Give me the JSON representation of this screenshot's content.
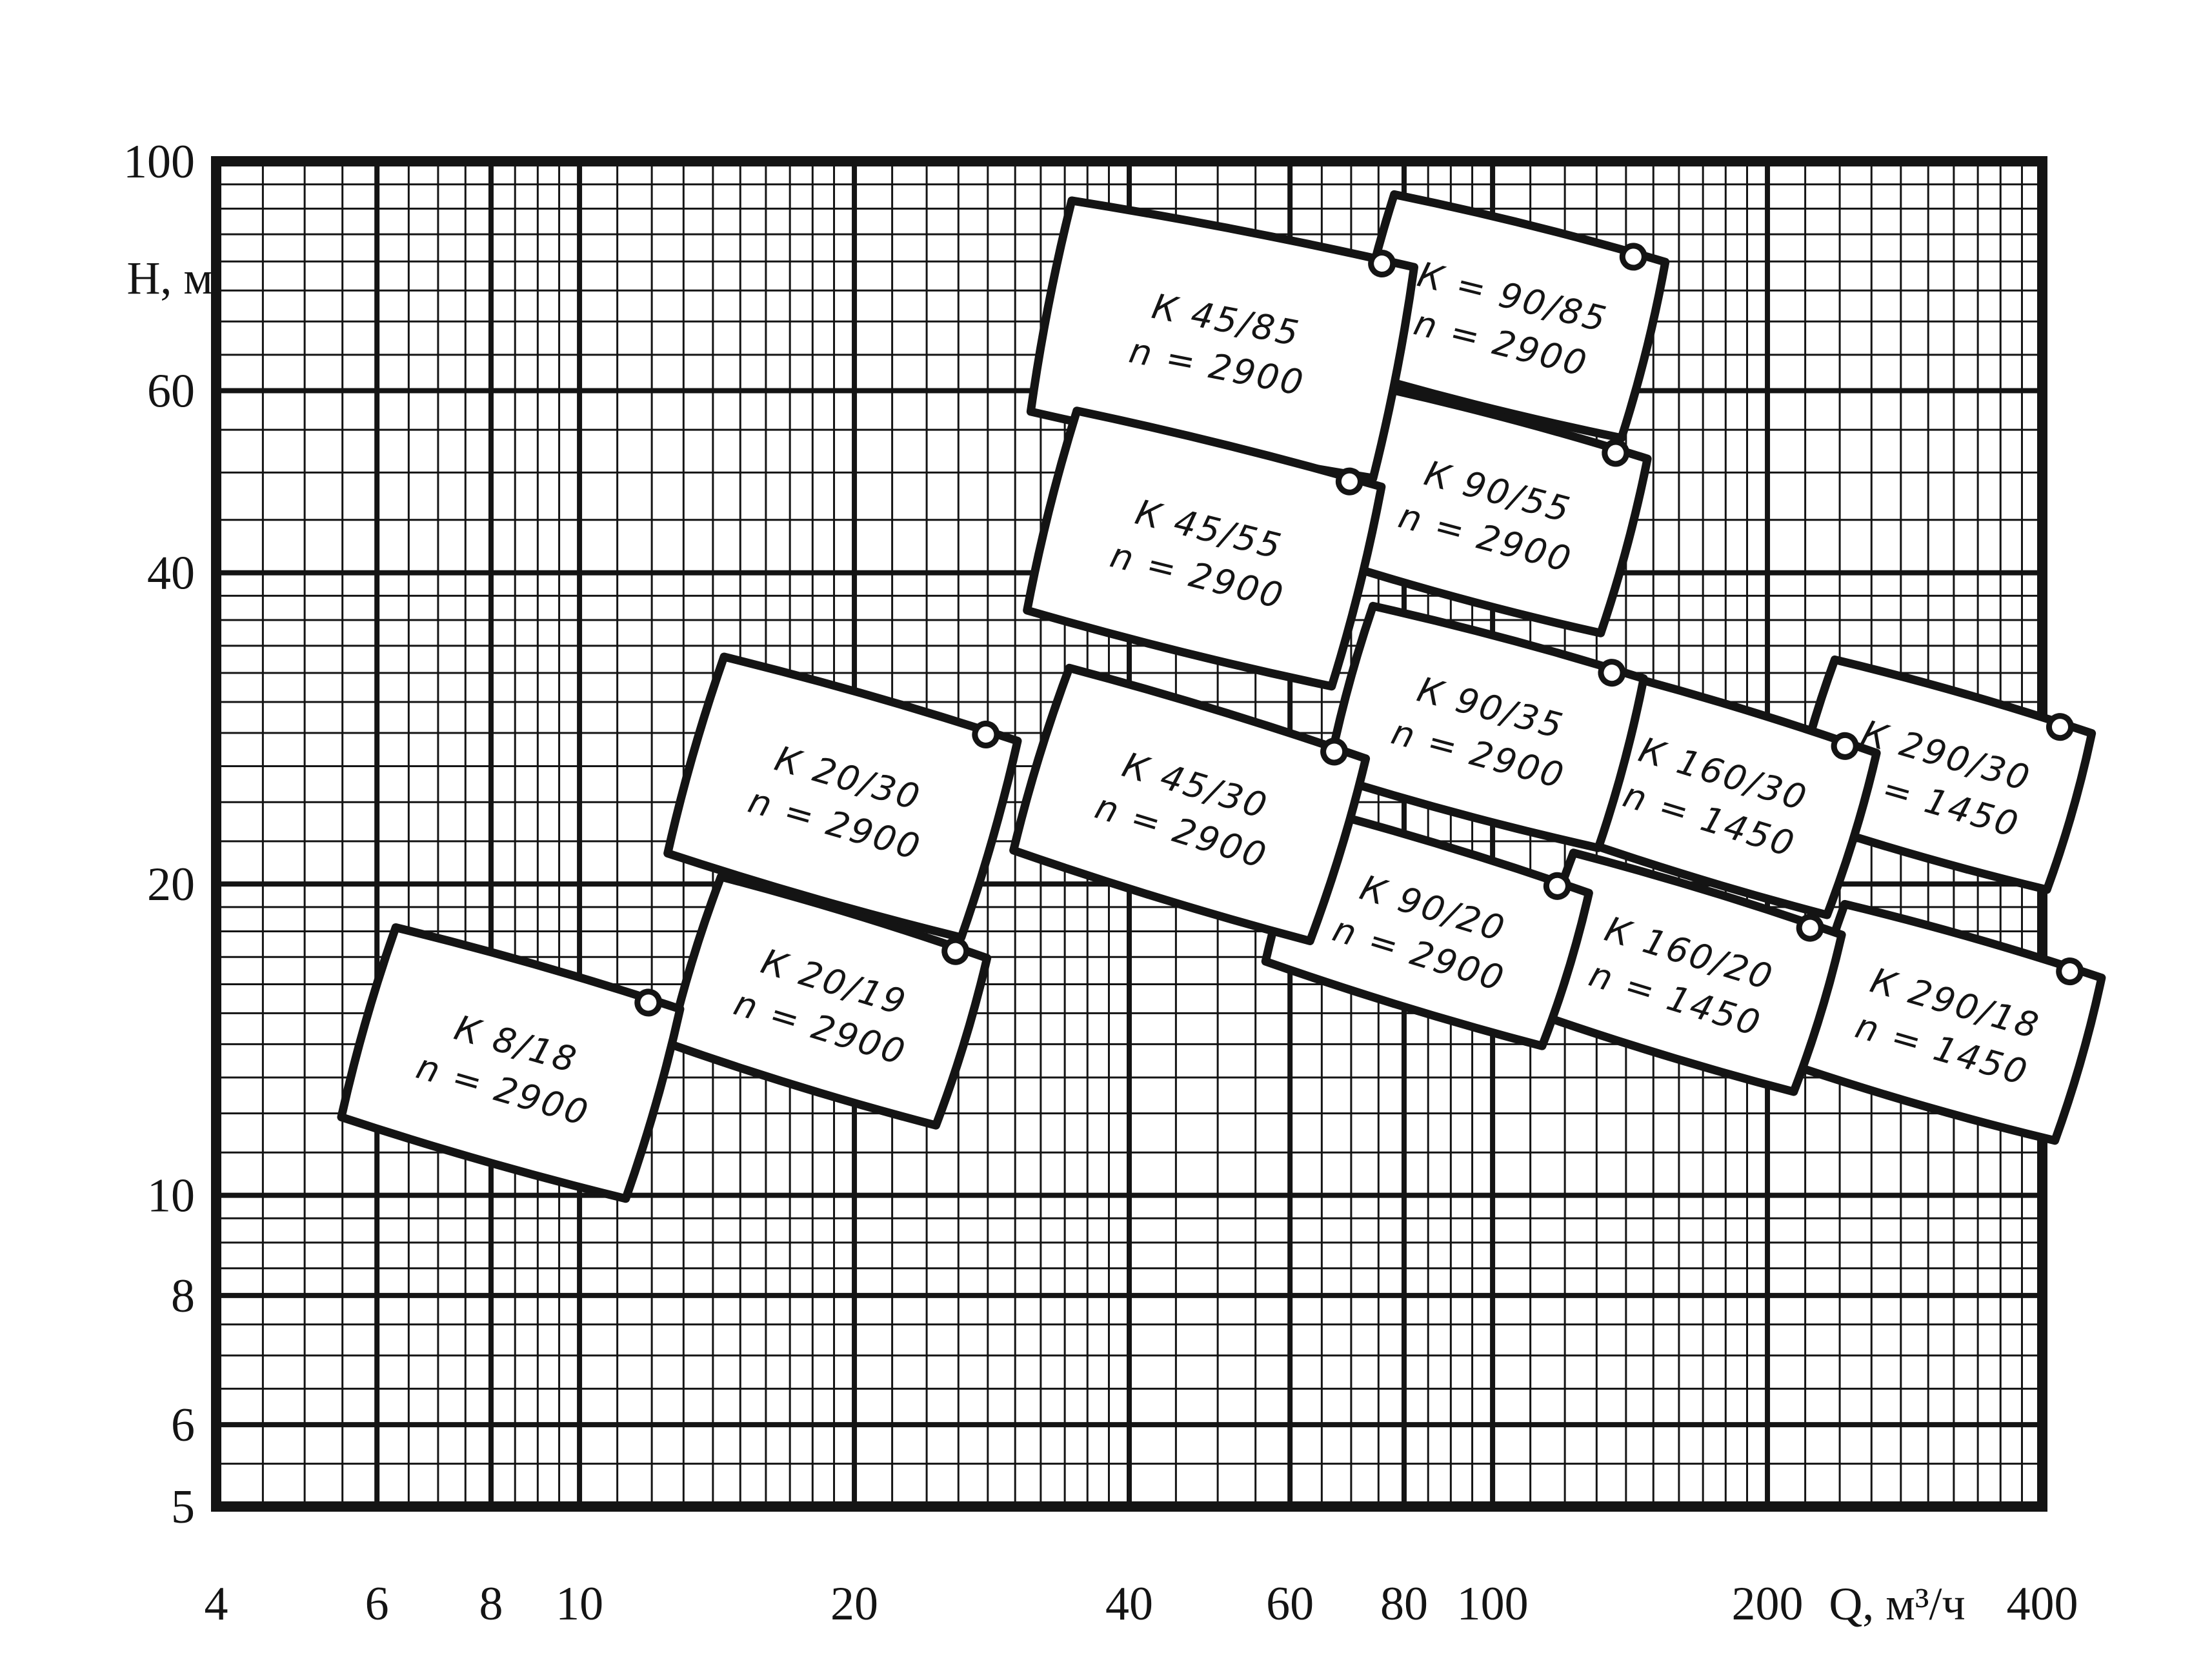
{
  "page": {
    "background": "#ffffff",
    "ink": "#141414"
  },
  "chart_data": {
    "type": "area",
    "title": "",
    "xlabel": "Q, м³/ч",
    "ylabel": "Н, м",
    "x_scale": "log",
    "y_scale": "log",
    "xlim": [
      4,
      400
    ],
    "ylim": [
      5,
      100
    ],
    "x_ticks": [
      "4",
      "6",
      "8",
      "10",
      "20",
      "40",
      "60",
      "80",
      "100",
      "200",
      "400"
    ],
    "y_ticks": [
      "100",
      "60",
      "40",
      "20",
      "10",
      "8",
      "6",
      "5"
    ],
    "grid": "dense log-log graph paper, black ink scan",
    "legend_position": "none",
    "fields": [
      {
        "label": "К 290/30",
        "n_label": "n = 1450",
        "q_range": [
          218,
          440
        ],
        "h_range": [
          21,
          31
        ],
        "tilt": 16
      },
      {
        "label": "К 290/18",
        "n_label": "n = 1450",
        "q_range": [
          223,
          450
        ],
        "h_range": [
          12,
          18
        ],
        "tilt": 16
      },
      {
        "label": "К 160/30",
        "n_label": "n = 1450",
        "q_range": [
          122,
          255
        ],
        "h_range": [
          20,
          30
        ],
        "tilt": 17
      },
      {
        "label": "К 160/20",
        "n_label": "n = 1450",
        "q_range": [
          112,
          234
        ],
        "h_range": [
          13.5,
          20
        ],
        "tilt": 17
      },
      {
        "label": "К = 90/85",
        "n_label": "n = 2900",
        "q_range": [
          72,
          150
        ],
        "h_range": [
          57,
          88
        ],
        "tilt": 14
      },
      {
        "label": "К 90/55",
        "n_label": "n = 2900",
        "q_range": [
          70,
          143
        ],
        "h_range": [
          37,
          57
        ],
        "tilt": 15
      },
      {
        "label": "К 90/35",
        "n_label": "n = 2900",
        "q_range": [
          68,
          142
        ],
        "h_range": [
          23,
          35
        ],
        "tilt": 15
      },
      {
        "label": "К 90/20",
        "n_label": "n = 2900",
        "q_range": [
          58,
          124
        ],
        "h_range": [
          15,
          22
        ],
        "tilt": 17
      },
      {
        "label": "К 45/85",
        "n_label": "n = 2900",
        "q_range": [
          32,
          80
        ],
        "h_range": [
          52,
          87
        ],
        "tilt": 11
      },
      {
        "label": "К 45/55",
        "n_label": "n = 2900",
        "q_range": [
          32,
          73
        ],
        "h_range": [
          33,
          54
        ],
        "tilt": 14
      },
      {
        "label": "К 45/30",
        "n_label": "n = 2900",
        "q_range": [
          31,
          70
        ],
        "h_range": [
          19,
          30
        ],
        "tilt": 17
      },
      {
        "label": "К 20/30",
        "n_label": "n = 2900",
        "q_range": [
          13,
          29
        ],
        "h_range": [
          19,
          31
        ],
        "tilt": 16
      },
      {
        "label": "К 20/19",
        "n_label": "n = 2900",
        "q_range": [
          13,
          27
        ],
        "h_range": [
          12.5,
          19
        ],
        "tilt": 17
      },
      {
        "label": "К 8/18",
        "n_label": "n = 2900",
        "q_range": [
          5.7,
          12.4
        ],
        "h_range": [
          10.6,
          17
        ],
        "tilt": 16
      }
    ]
  }
}
